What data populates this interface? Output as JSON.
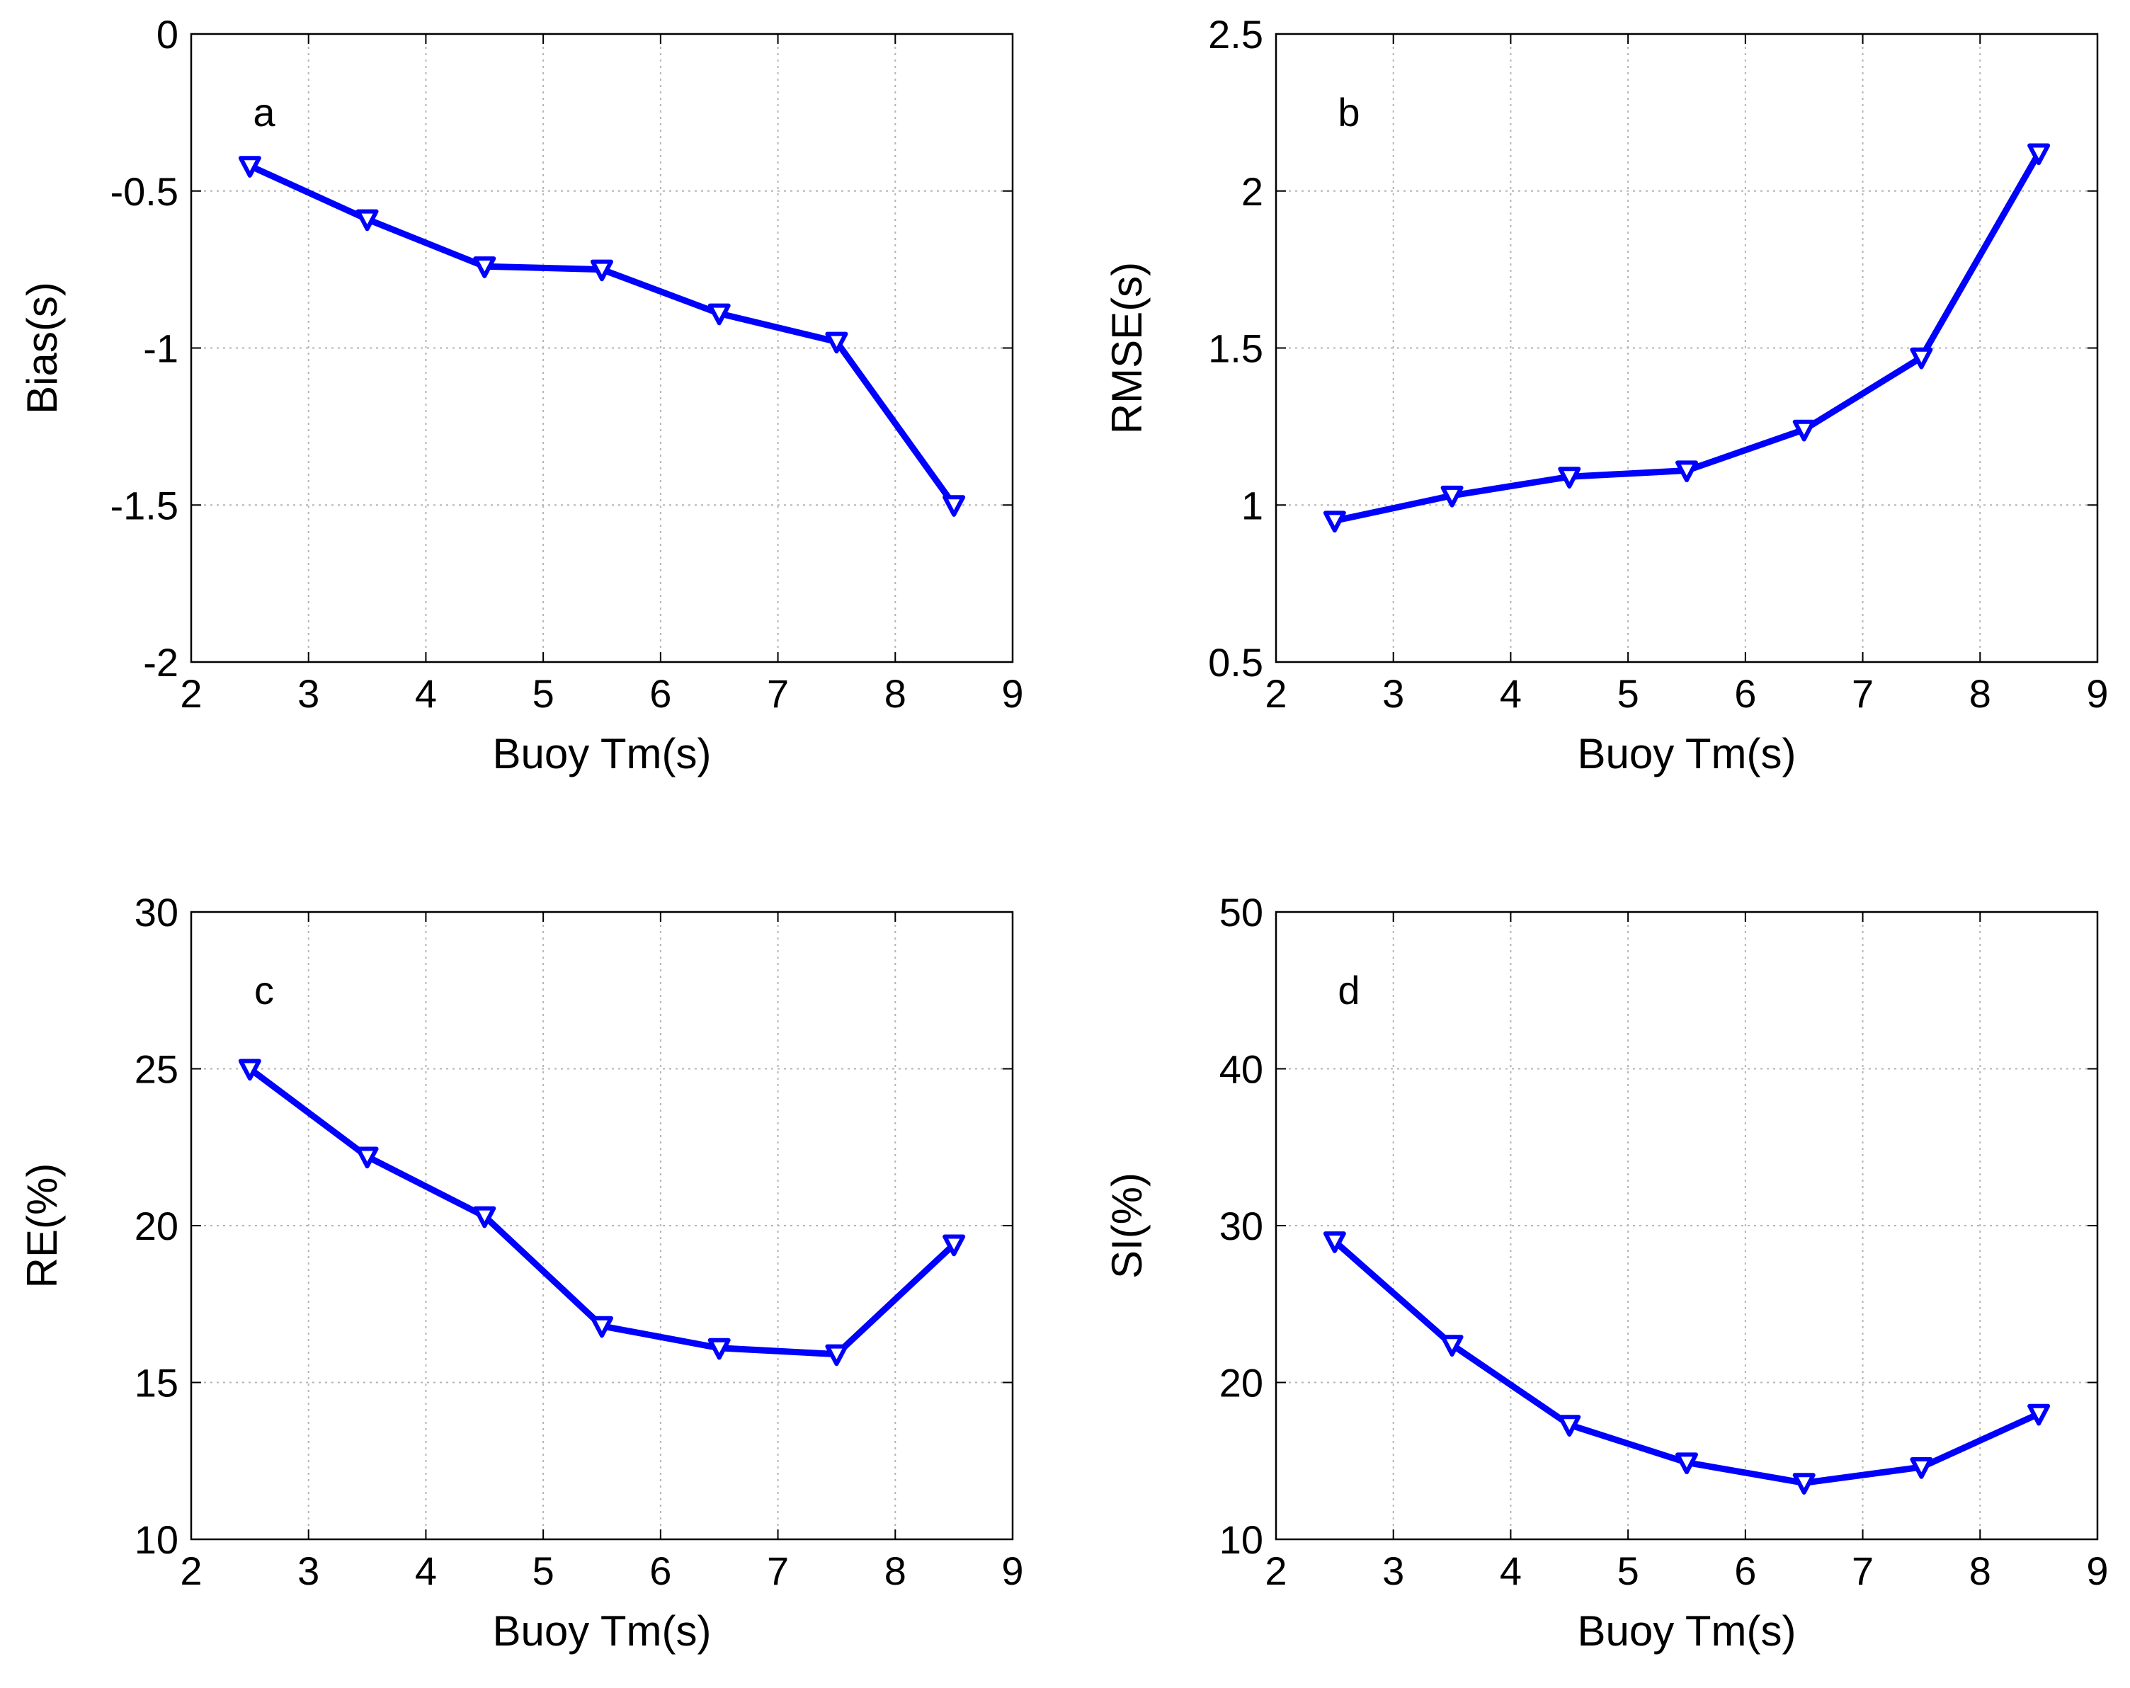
{
  "colors": {
    "series": "#0000ff",
    "axis": "#000000",
    "grid": "#b4b4b4",
    "background": "#ffffff"
  },
  "chart_data": [
    {
      "type": "line",
      "panel_label": "a",
      "title": "",
      "xlabel": "Buoy Tm(s)",
      "ylabel": "Bias(s)",
      "xlim": [
        2,
        9
      ],
      "ylim": [
        -2,
        0
      ],
      "x_ticks": [
        "2",
        "3",
        "4",
        "5",
        "6",
        "7",
        "8",
        "9"
      ],
      "y_ticks": [
        "0",
        "-0.5",
        "-1",
        "-1.5",
        "-2"
      ],
      "grid": true,
      "marker": "down-triangle",
      "x": [
        2.5,
        3.5,
        4.5,
        5.5,
        6.5,
        7.5,
        8.5
      ],
      "y": [
        -0.42,
        -0.59,
        -0.74,
        -0.75,
        -0.89,
        -0.98,
        -1.5
      ]
    },
    {
      "type": "line",
      "panel_label": "b",
      "title": "",
      "xlabel": "Buoy Tm(s)",
      "ylabel": "RMSE(s)",
      "xlim": [
        2,
        9
      ],
      "ylim": [
        0.5,
        2.5
      ],
      "x_ticks": [
        "2",
        "3",
        "4",
        "5",
        "6",
        "7",
        "8",
        "9"
      ],
      "y_ticks": [
        "2.5",
        "2",
        "1.5",
        "1",
        "0.5"
      ],
      "grid": true,
      "marker": "down-triangle",
      "x": [
        2.5,
        3.5,
        4.5,
        5.5,
        6.5,
        7.5,
        8.5
      ],
      "y": [
        0.95,
        1.03,
        1.09,
        1.11,
        1.24,
        1.47,
        2.12
      ]
    },
    {
      "type": "line",
      "panel_label": "c",
      "title": "",
      "xlabel": "Buoy Tm(s)",
      "ylabel": "RE(%)",
      "xlim": [
        2,
        9
      ],
      "ylim": [
        10,
        30
      ],
      "x_ticks": [
        "2",
        "3",
        "4",
        "5",
        "6",
        "7",
        "8",
        "9"
      ],
      "y_ticks": [
        "30",
        "25",
        "20",
        "15",
        "10"
      ],
      "grid": true,
      "marker": "down-triangle",
      "x": [
        2.5,
        3.5,
        4.5,
        5.5,
        6.5,
        7.5,
        8.5
      ],
      "y": [
        25.0,
        22.2,
        20.3,
        16.8,
        16.1,
        15.9,
        19.4
      ]
    },
    {
      "type": "line",
      "panel_label": "d",
      "title": "",
      "xlabel": "Buoy Tm(s)",
      "ylabel": "SI(%)",
      "xlim": [
        2,
        9
      ],
      "ylim": [
        10,
        50
      ],
      "x_ticks": [
        "2",
        "3",
        "4",
        "5",
        "6",
        "7",
        "8",
        "9"
      ],
      "y_ticks": [
        "50",
        "40",
        "30",
        "20",
        "10"
      ],
      "grid": true,
      "marker": "down-triangle",
      "x": [
        2.5,
        3.5,
        4.5,
        5.5,
        6.5,
        7.5,
        8.5
      ],
      "y": [
        29.0,
        22.4,
        17.3,
        14.9,
        13.6,
        14.6,
        18.0
      ]
    }
  ]
}
